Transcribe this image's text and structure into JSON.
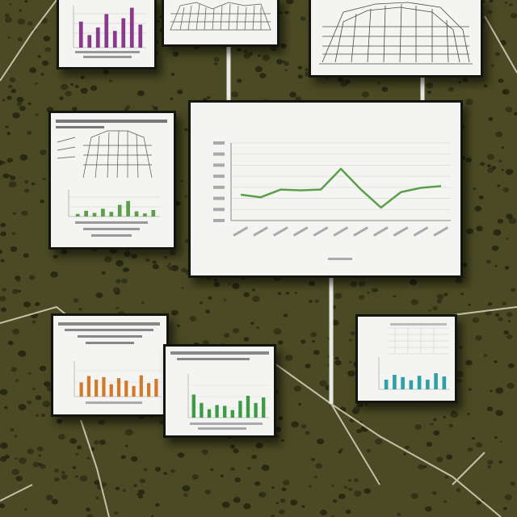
{
  "scene": {
    "background_color": "#4a4a24",
    "description_elements": [
      "wall-of-chart-cards",
      "connecting-posts",
      "cracks"
    ]
  },
  "main_chart": {
    "title": "",
    "line_color": "#5aa048",
    "chart_data": {
      "type": "line",
      "title": "",
      "xlabel": "",
      "ylabel": "",
      "x_count": 11,
      "values": [
        30,
        27,
        36,
        35,
        36,
        60,
        36,
        15,
        33,
        38,
        40
      ],
      "ylim": [
        0,
        90
      ],
      "grid": true
    }
  },
  "small_charts": [
    {
      "name": "top-left-bars",
      "type": "bar",
      "color": "#8a3a8a",
      "values": [
        62,
        30,
        48,
        80,
        40,
        70,
        95,
        55
      ]
    },
    {
      "name": "left-middle-bars",
      "type": "bar",
      "color": "#5aa048",
      "values": [
        10,
        22,
        14,
        30,
        18,
        45,
        60,
        20,
        12,
        25
      ]
    },
    {
      "name": "bottom-left-bars",
      "type": "bar",
      "color": "#d07a2a",
      "values": [
        40,
        58,
        48,
        55,
        35,
        52,
        45,
        30,
        60,
        38,
        50
      ]
    },
    {
      "name": "bottom-middle-bars",
      "type": "bar",
      "color": "#3c9c46",
      "values": [
        55,
        35,
        20,
        30,
        28,
        18,
        40,
        52,
        35,
        48
      ]
    },
    {
      "name": "right-bars",
      "type": "bar",
      "color": "#2ea0a8",
      "values": [
        30,
        45,
        38,
        28,
        42,
        30,
        50,
        40
      ]
    }
  ]
}
